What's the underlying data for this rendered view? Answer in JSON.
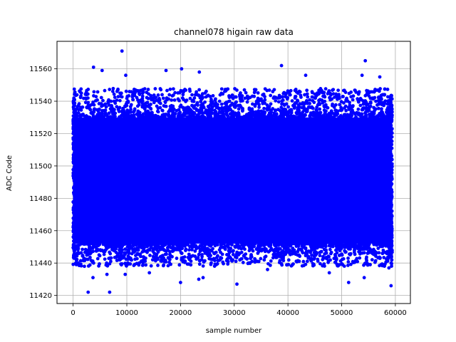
{
  "chart_data": {
    "type": "scatter",
    "title": "channel078 higain raw data",
    "xlabel": "sample number",
    "ylabel": "ADC Code",
    "xlim": [
      -3000,
      62800
    ],
    "ylim": [
      11415,
      11577
    ],
    "xticks": [
      0,
      10000,
      20000,
      30000,
      40000,
      50000,
      60000
    ],
    "xtick_labels": [
      "0",
      "10000",
      "20000",
      "30000",
      "40000",
      "50000",
      "60000"
    ],
    "yticks": [
      11420,
      11440,
      11460,
      11480,
      11500,
      11520,
      11540,
      11560
    ],
    "ytick_labels": [
      "11420",
      "11440",
      "11460",
      "11480",
      "11500",
      "11520",
      "11540",
      "11560"
    ],
    "grid": true,
    "marker_color": "#0000ff",
    "series": [
      {
        "sample_range": [
          0,
          59400
        ],
        "core_band": [
          11452,
          11530
        ],
        "fringe_band": [
          11438,
          11548
        ],
        "outliers": [
          {
            "x": 9100,
            "y": 11571
          },
          {
            "x": 3800,
            "y": 11561
          },
          {
            "x": 5400,
            "y": 11559
          },
          {
            "x": 9800,
            "y": 11556
          },
          {
            "x": 17300,
            "y": 11559
          },
          {
            "x": 20200,
            "y": 11560
          },
          {
            "x": 23500,
            "y": 11558
          },
          {
            "x": 38800,
            "y": 11562
          },
          {
            "x": 43300,
            "y": 11556
          },
          {
            "x": 54400,
            "y": 11565
          },
          {
            "x": 53800,
            "y": 11556
          },
          {
            "x": 57100,
            "y": 11555
          },
          {
            "x": 2800,
            "y": 11422
          },
          {
            "x": 6800,
            "y": 11422
          },
          {
            "x": 59200,
            "y": 11426
          },
          {
            "x": 30500,
            "y": 11427
          },
          {
            "x": 20000,
            "y": 11428
          },
          {
            "x": 51300,
            "y": 11428
          },
          {
            "x": 3700,
            "y": 11431
          },
          {
            "x": 23400,
            "y": 11430
          },
          {
            "x": 24200,
            "y": 11431
          },
          {
            "x": 54200,
            "y": 11431
          },
          {
            "x": 9700,
            "y": 11433
          },
          {
            "x": 6300,
            "y": 11433
          },
          {
            "x": 47700,
            "y": 11434
          },
          {
            "x": 14200,
            "y": 11434
          },
          {
            "x": 600,
            "y": 11439
          },
          {
            "x": 58800,
            "y": 11437
          },
          {
            "x": 2100,
            "y": 11438
          },
          {
            "x": 36200,
            "y": 11436
          }
        ]
      }
    ]
  }
}
